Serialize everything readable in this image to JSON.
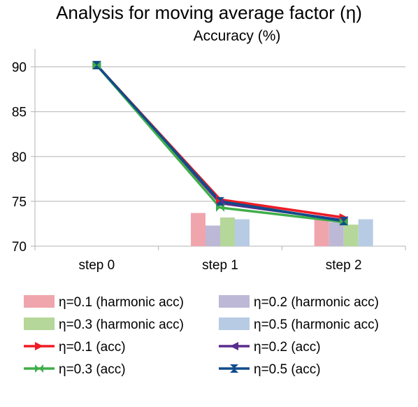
{
  "chart_data": {
    "type": "bar",
    "title": "Analysis for moving average factor (η)",
    "subtitle": "Accuracy (%)",
    "xlabel": "",
    "ylabel": "",
    "ylim": [
      70,
      92
    ],
    "yticks": [
      70,
      75,
      80,
      85,
      90
    ],
    "grid": true,
    "legend_position": "bottom",
    "categories": [
      "step 0",
      "step 1",
      "step 2"
    ],
    "bar_series": [
      {
        "name": "η=0.1 (harmonic acc)",
        "color": "#f0a5ad",
        "values": [
          null,
          73.7,
          73.0
        ]
      },
      {
        "name": "η=0.2 (harmonic acc)",
        "color": "#bdb8d6",
        "values": [
          null,
          72.3,
          72.7
        ]
      },
      {
        "name": "η=0.3 (harmonic acc)",
        "color": "#b5d79a",
        "values": [
          null,
          73.2,
          72.4
        ]
      },
      {
        "name": "η=0.5 (harmonic acc)",
        "color": "#b8cbe4",
        "values": [
          null,
          73.0,
          73.0
        ]
      }
    ],
    "line_series": [
      {
        "name": "η=0.1 (acc)",
        "color": "#ee1c25",
        "marker": "arrow-right",
        "values": [
          90.2,
          75.2,
          73.2
        ]
      },
      {
        "name": "η=0.2 (acc)",
        "color": "#5b2c8e",
        "marker": "arrow-left",
        "values": [
          90.2,
          74.8,
          72.9
        ]
      },
      {
        "name": "η=0.3 (acc)",
        "color": "#3fae49",
        "marker": "bowtie",
        "values": [
          90.2,
          74.3,
          72.7
        ]
      },
      {
        "name": "η=0.5 (acc)",
        "color": "#0f4c8a",
        "marker": "hourglass",
        "values": [
          90.2,
          75.0,
          72.8
        ]
      }
    ]
  }
}
